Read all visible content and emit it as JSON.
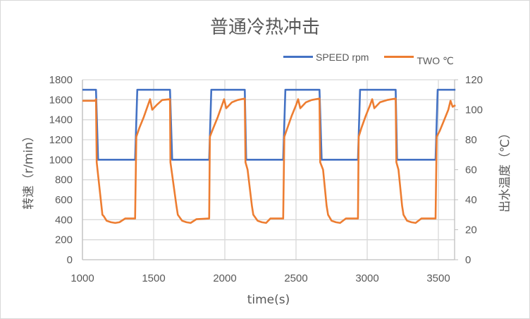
{
  "chart": {
    "title": "普通冷热冲击",
    "legend": [
      {
        "label": "SPEED rpm",
        "color": "#4472c4"
      },
      {
        "label": "TWO ℃",
        "color": "#ed7d31"
      }
    ],
    "xlabel": "time(s)",
    "ylabel_left": "转速（r/min）",
    "ylabel_right": "出水温度（℃）",
    "x_ticks": [
      "1000",
      "1500",
      "2000",
      "2500",
      "3000",
      "3500"
    ],
    "y_left_ticks": [
      "0",
      "200",
      "400",
      "600",
      "800",
      "1000",
      "1200",
      "1400",
      "1600",
      "1800"
    ],
    "y_right_ticks": [
      "0",
      "20",
      "40",
      "60",
      "80",
      "100",
      "120"
    ]
  },
  "chart_data": {
    "type": "line",
    "title": "普通冷热冲击",
    "xlabel": "time(s)",
    "ylabel": "转速（r/min）",
    "ylabel_right": "出水温度（℃）",
    "xlim": [
      1000,
      3620
    ],
    "ylim": [
      0,
      1800
    ],
    "ylim_right": [
      0,
      120
    ],
    "grid": true,
    "legend_position": "top-right",
    "series": [
      {
        "name": "SPEED rpm",
        "axis": "left",
        "color": "#4472c4",
        "x": [
          1000,
          1095,
          1110,
          1370,
          1385,
          1615,
          1630,
          1890,
          1905,
          2140,
          2150,
          2410,
          2425,
          2665,
          2680,
          2935,
          2950,
          3200,
          3210,
          3480,
          3495,
          3620
        ],
        "values": [
          1700,
          1700,
          1000,
          1000,
          1700,
          1700,
          1000,
          1000,
          1700,
          1700,
          1000,
          1000,
          1700,
          1700,
          1000,
          1000,
          1700,
          1700,
          1000,
          1000,
          1700,
          1700
        ]
      },
      {
        "name": "TWO ℃",
        "axis": "right",
        "color": "#ed7d31",
        "x": [
          1000,
          1090,
          1095,
          1100,
          1140,
          1150,
          1170,
          1200,
          1230,
          1260,
          1300,
          1370,
          1378,
          1400,
          1430,
          1460,
          1475,
          1490,
          1520,
          1560,
          1615,
          1618,
          1625,
          1660,
          1670,
          1700,
          1730,
          1760,
          1800,
          1890,
          1895,
          1920,
          1950,
          1980,
          1995,
          2010,
          2050,
          2090,
          2140,
          2145,
          2160,
          2190,
          2200,
          2230,
          2260,
          2290,
          2320,
          2410,
          2418,
          2440,
          2470,
          2500,
          2515,
          2530,
          2570,
          2610,
          2665,
          2670,
          2690,
          2715,
          2725,
          2750,
          2780,
          2810,
          2850,
          2935,
          2940,
          2960,
          2990,
          3020,
          3035,
          3050,
          3090,
          3140,
          3200,
          3205,
          3220,
          3245,
          3255,
          3280,
          3310,
          3340,
          3380,
          3480,
          3488,
          3510,
          3540,
          3570,
          3585,
          3600,
          3620
        ],
        "values": [
          106,
          106,
          107,
          65,
          30,
          29,
          26,
          25,
          24.5,
          25,
          27.5,
          27.5,
          82,
          88,
          95,
          103,
          107,
          100,
          103,
          106.5,
          107,
          65,
          60,
          36,
          30,
          26,
          25,
          24.5,
          27,
          27.5,
          82,
          88,
          95,
          103,
          107,
          101,
          105,
          106.5,
          107.5,
          65,
          60,
          36,
          30,
          26,
          25,
          24.5,
          27.5,
          27.5,
          82,
          88,
          96,
          103,
          107,
          101,
          105,
          106.5,
          107.5,
          65,
          60,
          36,
          30,
          26,
          25,
          24.5,
          27.5,
          27.5,
          82,
          88,
          96,
          103,
          107,
          101,
          105,
          106.5,
          107.5,
          65,
          60,
          36,
          30,
          26,
          25,
          24.5,
          27.5,
          27.5,
          82,
          86,
          93,
          100,
          106,
          102,
          103
        ]
      }
    ]
  }
}
